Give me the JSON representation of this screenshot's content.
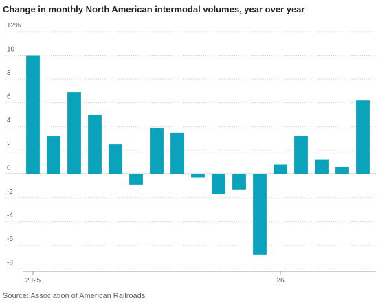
{
  "chart_data": {
    "type": "bar",
    "title": "Change in monthly North American intermodal volumes, year over year",
    "source": "Source: Association of American Railroads",
    "categories": [
      "2025",
      null,
      null,
      null,
      null,
      null,
      null,
      null,
      null,
      null,
      null,
      null,
      "26",
      null,
      null,
      null,
      null
    ],
    "values": [
      10.0,
      3.2,
      6.9,
      5.0,
      2.5,
      -0.9,
      3.9,
      3.5,
      -0.3,
      -1.7,
      -1.3,
      -6.8,
      0.8,
      3.2,
      1.2,
      0.6,
      6.2
    ],
    "color": "#0ba3bc",
    "ylim": [
      -8.2,
      12
    ],
    "yticks": [
      -8,
      -6,
      -4,
      -2,
      0,
      2,
      4,
      6,
      8,
      10,
      {
        "value": 12,
        "label": "12%"
      }
    ],
    "grid": true
  }
}
